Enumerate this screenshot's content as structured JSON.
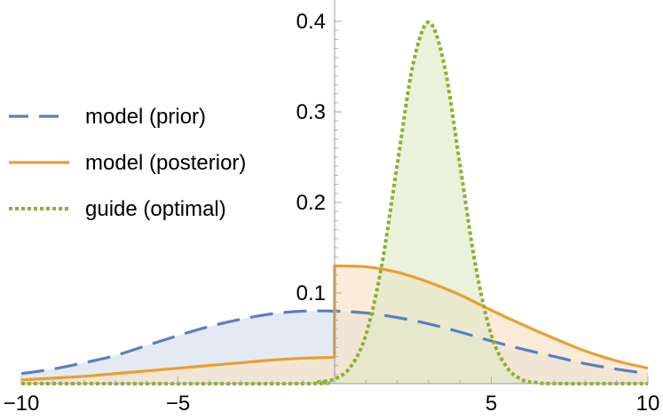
{
  "chart_data": {
    "type": "area",
    "title": "",
    "xlabel": "",
    "ylabel": "",
    "xlim": [
      -10,
      10
    ],
    "ylim": [
      0,
      0.4
    ],
    "grid": false,
    "legend_position": "left",
    "x_ticks": [
      {
        "value": -10,
        "label": "−10"
      },
      {
        "value": -5,
        "label": "−5"
      },
      {
        "value": 5,
        "label": "5"
      },
      {
        "value": 10,
        "label": "10"
      }
    ],
    "y_ticks": [
      {
        "value": 0.1,
        "label": "0.1"
      },
      {
        "value": 0.2,
        "label": "0.2"
      },
      {
        "value": 0.3,
        "label": "0.3"
      },
      {
        "value": 0.4,
        "label": "0.4"
      }
    ],
    "series": [
      {
        "name": "model (prior)",
        "style": "dashed",
        "color": "#5B7FBF",
        "fill": "#D5DEEE",
        "points": [
          [
            -10,
            0.011
          ],
          [
            -9,
            0.016
          ],
          [
            -8,
            0.023
          ],
          [
            -7,
            0.031
          ],
          [
            -6,
            0.042
          ],
          [
            -5,
            0.053
          ],
          [
            -4,
            0.063
          ],
          [
            -3,
            0.071
          ],
          [
            -2,
            0.077
          ],
          [
            -1,
            0.08
          ],
          [
            0,
            0.08
          ],
          [
            1,
            0.078
          ],
          [
            2,
            0.073
          ],
          [
            3,
            0.066
          ],
          [
            4,
            0.057
          ],
          [
            5,
            0.047
          ],
          [
            6,
            0.038
          ],
          [
            7,
            0.03
          ],
          [
            8,
            0.022
          ],
          [
            9,
            0.016
          ],
          [
            10,
            0.011
          ]
        ]
      },
      {
        "name": "model (posterior)",
        "style": "solid",
        "color": "#E8A030",
        "fill": "#F8E2C4",
        "points": [
          [
            -10,
            0.004
          ],
          [
            -9,
            0.006
          ],
          [
            -8,
            0.008
          ],
          [
            -7,
            0.011
          ],
          [
            -6,
            0.014
          ],
          [
            -5,
            0.017
          ],
          [
            -4,
            0.02
          ],
          [
            -3,
            0.023
          ],
          [
            -2,
            0.026
          ],
          [
            -1,
            0.028
          ],
          [
            -0.01,
            0.029
          ],
          [
            0,
            0.13
          ],
          [
            1,
            0.129
          ],
          [
            2,
            0.123
          ],
          [
            3,
            0.112
          ],
          [
            4,
            0.098
          ],
          [
            5,
            0.081
          ],
          [
            6,
            0.065
          ],
          [
            7,
            0.05
          ],
          [
            8,
            0.036
          ],
          [
            9,
            0.025
          ],
          [
            10,
            0.017
          ]
        ]
      },
      {
        "name": "guide (optimal)",
        "style": "dotted",
        "color": "#8DB030",
        "fill": "#E0E9C8",
        "points": [
          [
            -10,
            0.0
          ],
          [
            -1,
            0.0
          ],
          [
            -0.5,
            0.002
          ],
          [
            0,
            0.005
          ],
          [
            0.5,
            0.018
          ],
          [
            1,
            0.054
          ],
          [
            1.5,
            0.13
          ],
          [
            2,
            0.242
          ],
          [
            2.5,
            0.352
          ],
          [
            3,
            0.399
          ],
          [
            3.5,
            0.352
          ],
          [
            4,
            0.242
          ],
          [
            4.5,
            0.13
          ],
          [
            5,
            0.054
          ],
          [
            5.5,
            0.018
          ],
          [
            6,
            0.004
          ],
          [
            6.5,
            0.001
          ],
          [
            7,
            0.0
          ],
          [
            10,
            0.0
          ]
        ]
      }
    ]
  }
}
